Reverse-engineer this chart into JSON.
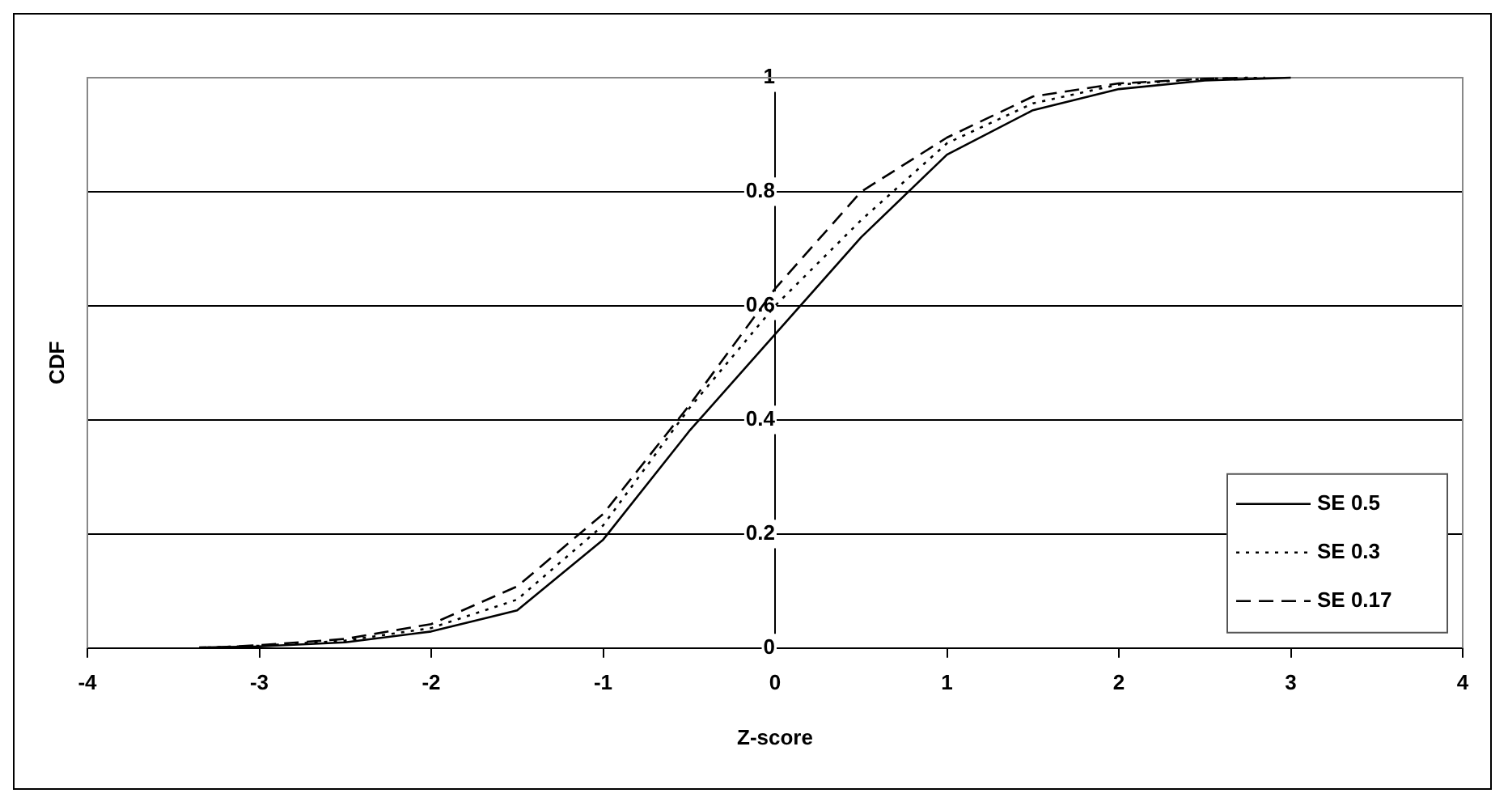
{
  "chart_data": {
    "type": "line",
    "xlabel": "Z-score",
    "ylabel": "CDF",
    "xlim": [
      -4,
      4
    ],
    "xticks": [
      -4,
      -3,
      -2,
      -1,
      0,
      1,
      2,
      3,
      4
    ],
    "ylim": [
      0,
      1
    ],
    "yticks": [
      0,
      0.2,
      0.4,
      0.6,
      0.8,
      1
    ],
    "grid": "y",
    "legend": "bottom right",
    "marker": "none",
    "x": [
      -3.35,
      -3,
      -2.5,
      -2,
      -1.5,
      -1,
      -0.5,
      0,
      0.5,
      1,
      1.5,
      2,
      2.5,
      3
    ],
    "series": [
      {
        "name": "SE 0.5",
        "color": "#000000",
        "line_style": "solid",
        "values": [
          0.001,
          0.003,
          0.01,
          0.029,
          0.066,
          0.19,
          0.38,
          0.55,
          0.72,
          0.865,
          0.943,
          0.98,
          0.995,
          1.0
        ]
      },
      {
        "name": "SE 0.3",
        "color": "#000000",
        "line_style": "dotted",
        "x": [
          -3.3,
          -3,
          -2.5,
          -2,
          -1.5,
          -1,
          -0.5,
          0,
          0.5,
          1,
          1.5,
          2,
          2.5,
          2.85
        ],
        "values": [
          0.001,
          0.004,
          0.013,
          0.035,
          0.085,
          0.215,
          0.42,
          0.6,
          0.75,
          0.885,
          0.955,
          0.988,
          0.998,
          1.0
        ]
      },
      {
        "name": "SE 0.17",
        "color": "#000000",
        "line_style": "dashed",
        "x": [
          -3.25,
          -3,
          -2.5,
          -2,
          -1.5,
          -1,
          -0.5,
          0,
          0.5,
          1,
          1.5,
          2,
          2.5,
          2.75
        ],
        "values": [
          0.001,
          0.005,
          0.016,
          0.042,
          0.108,
          0.235,
          0.425,
          0.63,
          0.8,
          0.895,
          0.967,
          0.99,
          0.998,
          1.0
        ]
      }
    ]
  }
}
